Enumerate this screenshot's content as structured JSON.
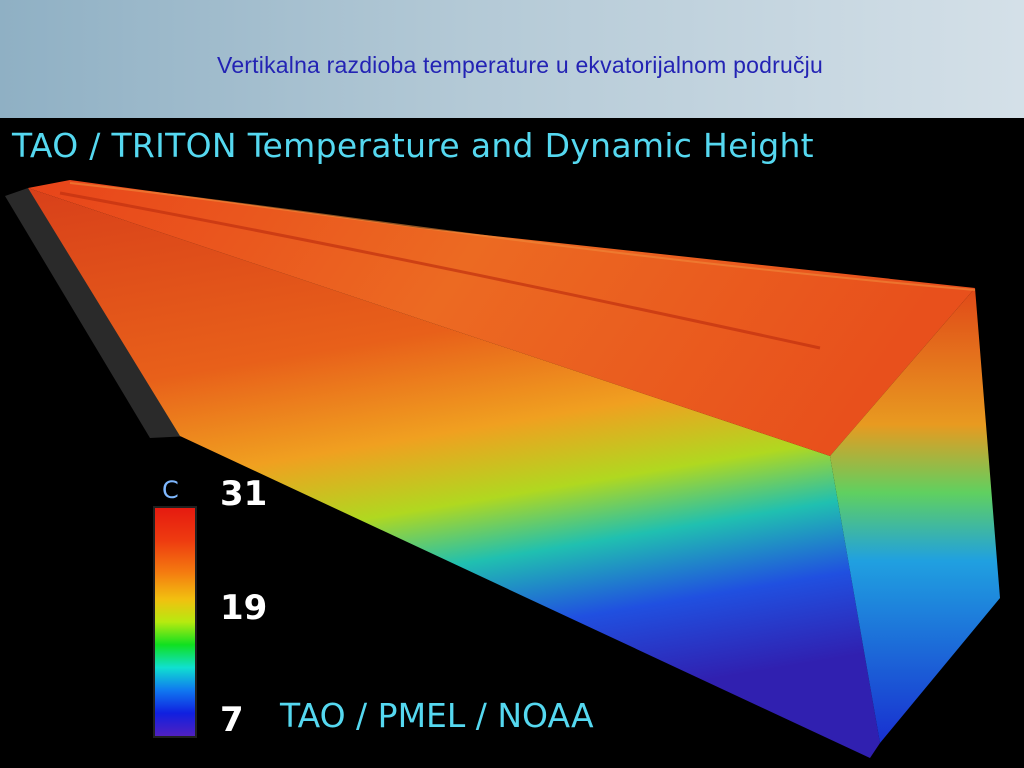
{
  "slide": {
    "title": "Vertikalna razdioba temperature u ekvatorijalnom području"
  },
  "figure": {
    "title": "TAO / TRITON Temperature and Dynamic Height",
    "credit": "TAO / PMEL / NOAA",
    "colorbar": {
      "unit": "C",
      "max_label": "31",
      "mid_label": "19",
      "min_label": "7",
      "colors": [
        "#e51a10",
        "#f47a10",
        "#f2c010",
        "#10e020",
        "#10e0d0",
        "#1078f0",
        "#5020c0"
      ]
    }
  }
}
